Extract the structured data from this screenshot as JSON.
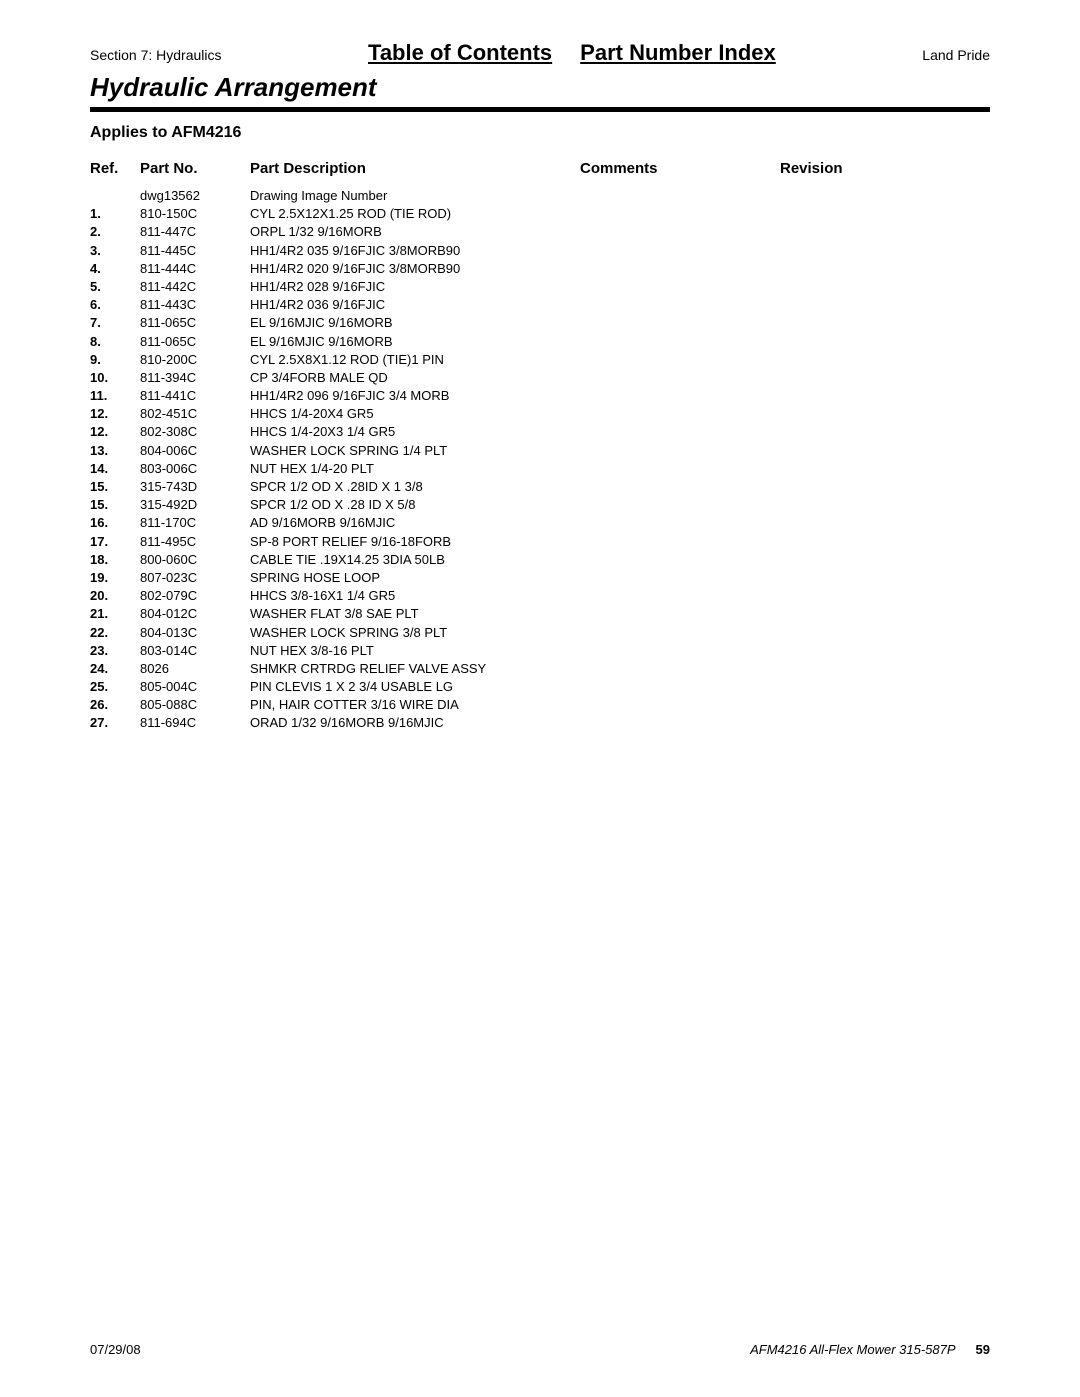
{
  "header": {
    "section": "Section 7: Hydraulics",
    "toc": "Table of Contents",
    "pni": "Part Number Index",
    "brand": "Land Pride"
  },
  "title": "Hydraulic Arrangement",
  "applies": "Applies to AFM4216",
  "columns": {
    "ref": "Ref.",
    "part": "Part No.",
    "desc": "Part Description",
    "comm": "Comments",
    "rev": "Revision"
  },
  "rows": [
    {
      "ref": "",
      "part": "dwg13562",
      "desc": "Drawing Image Number"
    },
    {
      "ref": "1.",
      "part": "810-150C",
      "desc": "CYL 2.5X12X1.25 ROD (TIE ROD)"
    },
    {
      "ref": "2.",
      "part": "811-447C",
      "desc": "ORPL 1/32 9/16MORB"
    },
    {
      "ref": "3.",
      "part": "811-445C",
      "desc": "HH1/4R2 035 9/16FJIC 3/8MORB90"
    },
    {
      "ref": "4.",
      "part": "811-444C",
      "desc": "HH1/4R2 020 9/16FJIC 3/8MORB90"
    },
    {
      "ref": "5.",
      "part": "811-442C",
      "desc": "HH1/4R2 028 9/16FJIC"
    },
    {
      "ref": "6.",
      "part": "811-443C",
      "desc": "HH1/4R2 036 9/16FJIC"
    },
    {
      "ref": "7.",
      "part": "811-065C",
      "desc": "EL 9/16MJIC 9/16MORB"
    },
    {
      "ref": "8.",
      "part": "811-065C",
      "desc": "EL 9/16MJIC 9/16MORB"
    },
    {
      "ref": "9.",
      "part": "810-200C",
      "desc": "CYL 2.5X8X1.12 ROD (TIE)1 PIN"
    },
    {
      "ref": "10.",
      "part": "811-394C",
      "desc": "CP 3/4FORB MALE QD"
    },
    {
      "ref": "11.",
      "part": "811-441C",
      "desc": "HH1/4R2 096 9/16FJIC 3/4 MORB"
    },
    {
      "ref": "12.",
      "part": "802-451C",
      "desc": "HHCS 1/4-20X4 GR5"
    },
    {
      "ref": "12.",
      "part": "802-308C",
      "desc": "HHCS 1/4-20X3 1/4 GR5"
    },
    {
      "ref": "13.",
      "part": "804-006C",
      "desc": "WASHER LOCK SPRING 1/4 PLT"
    },
    {
      "ref": "14.",
      "part": "803-006C",
      "desc": "NUT HEX 1/4-20 PLT"
    },
    {
      "ref": "15.",
      "part": "315-743D",
      "desc": "SPCR 1/2 OD X .28ID X 1 3/8"
    },
    {
      "ref": "15.",
      "part": "315-492D",
      "desc": "SPCR 1/2 OD X .28 ID X 5/8"
    },
    {
      "ref": "16.",
      "part": "811-170C",
      "desc": "AD 9/16MORB 9/16MJIC"
    },
    {
      "ref": "17.",
      "part": "811-495C",
      "desc": "SP-8 PORT RELIEF 9/16-18FORB"
    },
    {
      "ref": "18.",
      "part": "800-060C",
      "desc": "CABLE TIE .19X14.25 3DIA 50LB"
    },
    {
      "ref": "19.",
      "part": "807-023C",
      "desc": "SPRING HOSE LOOP"
    },
    {
      "ref": "20.",
      "part": "802-079C",
      "desc": "HHCS 3/8-16X1 1/4 GR5"
    },
    {
      "ref": "21.",
      "part": "804-012C",
      "desc": "WASHER FLAT 3/8 SAE PLT"
    },
    {
      "ref": "22.",
      "part": "804-013C",
      "desc": "WASHER LOCK SPRING 3/8 PLT"
    },
    {
      "ref": "23.",
      "part": "803-014C",
      "desc": "NUT HEX 3/8-16 PLT"
    },
    {
      "ref": "24.",
      "part": "8026",
      "desc": "SHMKR CRTRDG RELIEF VALVE ASSY"
    },
    {
      "ref": "25.",
      "part": "805-004C",
      "desc": "PIN CLEVIS 1 X 2 3/4 USABLE LG"
    },
    {
      "ref": "26.",
      "part": "805-088C",
      "desc": "PIN, HAIR COTTER 3/16 WIRE DIA"
    },
    {
      "ref": "27.",
      "part": "811-694C",
      "desc": "ORAD 1/32 9/16MORB 9/16MJIC"
    }
  ],
  "footer": {
    "date": "07/29/08",
    "model": "AFM4216 All-Flex Mower 315-587P",
    "page": "59"
  }
}
